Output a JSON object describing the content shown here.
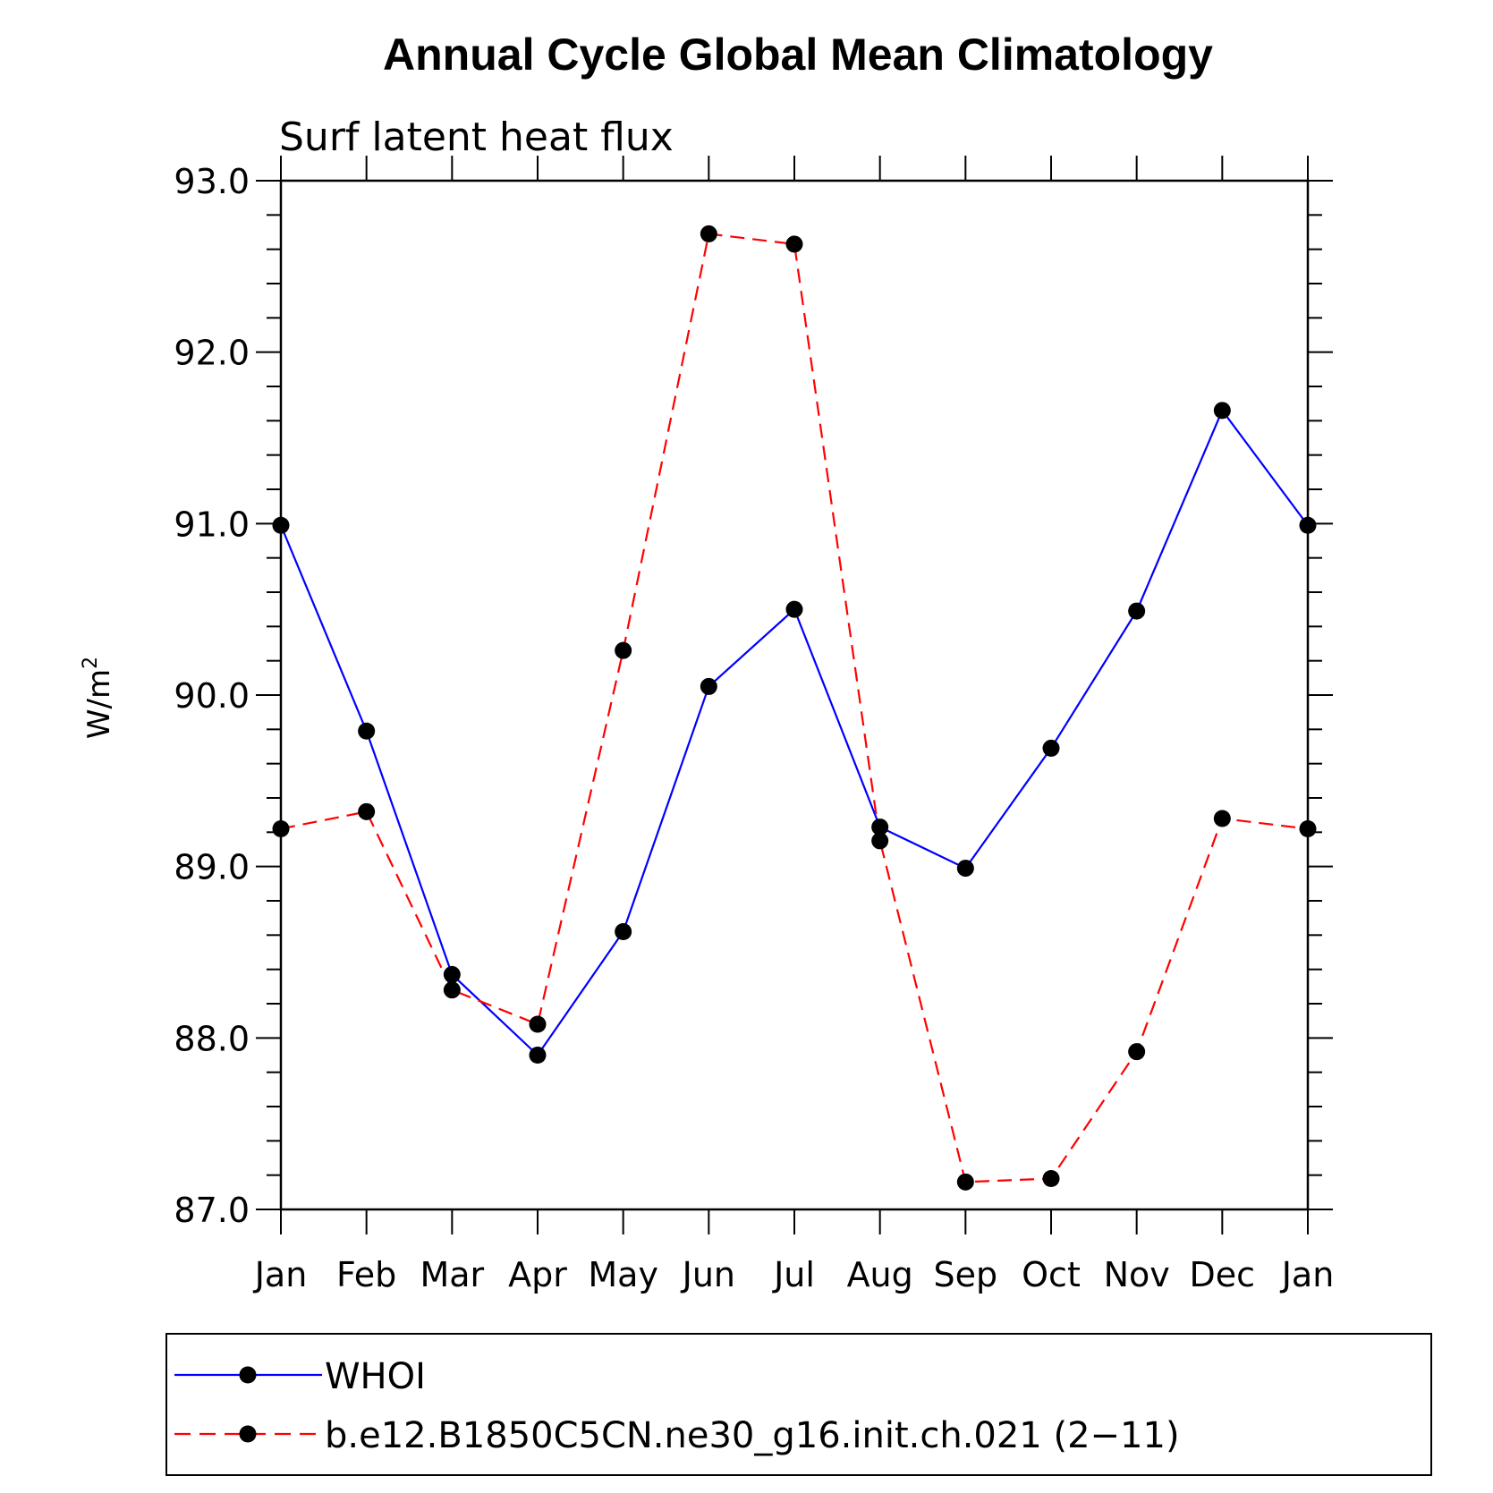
{
  "chart_data": {
    "type": "line",
    "title": "Annual Cycle Global Mean Climatology",
    "subtitle": "Surf latent heat flux",
    "ylabel": "W/m",
    "ylabel_superscript": "2",
    "xlabel": "",
    "categories": [
      "Jan",
      "Feb",
      "Mar",
      "Apr",
      "May",
      "Jun",
      "Jul",
      "Aug",
      "Sep",
      "Oct",
      "Nov",
      "Dec",
      "Jan"
    ],
    "ylim": [
      87.0,
      93.0
    ],
    "yticks": [
      "87.0",
      "88.0",
      "89.0",
      "90.0",
      "91.0",
      "92.0",
      "93.0"
    ],
    "series": [
      {
        "name": "WHOI",
        "color": "#0000ff",
        "dash": "solid",
        "values": [
          90.99,
          89.79,
          88.37,
          87.9,
          88.62,
          90.05,
          90.5,
          89.23,
          88.99,
          89.69,
          90.49,
          91.66,
          90.99
        ]
      },
      {
        "name": "b.e12.B1850C5CN.ne30_g16.init.ch.021 (2−11)",
        "color": "#ff0000",
        "dash": "dashed",
        "values": [
          89.22,
          89.32,
          88.28,
          88.08,
          90.26,
          92.69,
          92.63,
          89.15,
          87.16,
          87.18,
          87.92,
          89.28,
          89.22
        ]
      }
    ],
    "legend": "bottom"
  }
}
